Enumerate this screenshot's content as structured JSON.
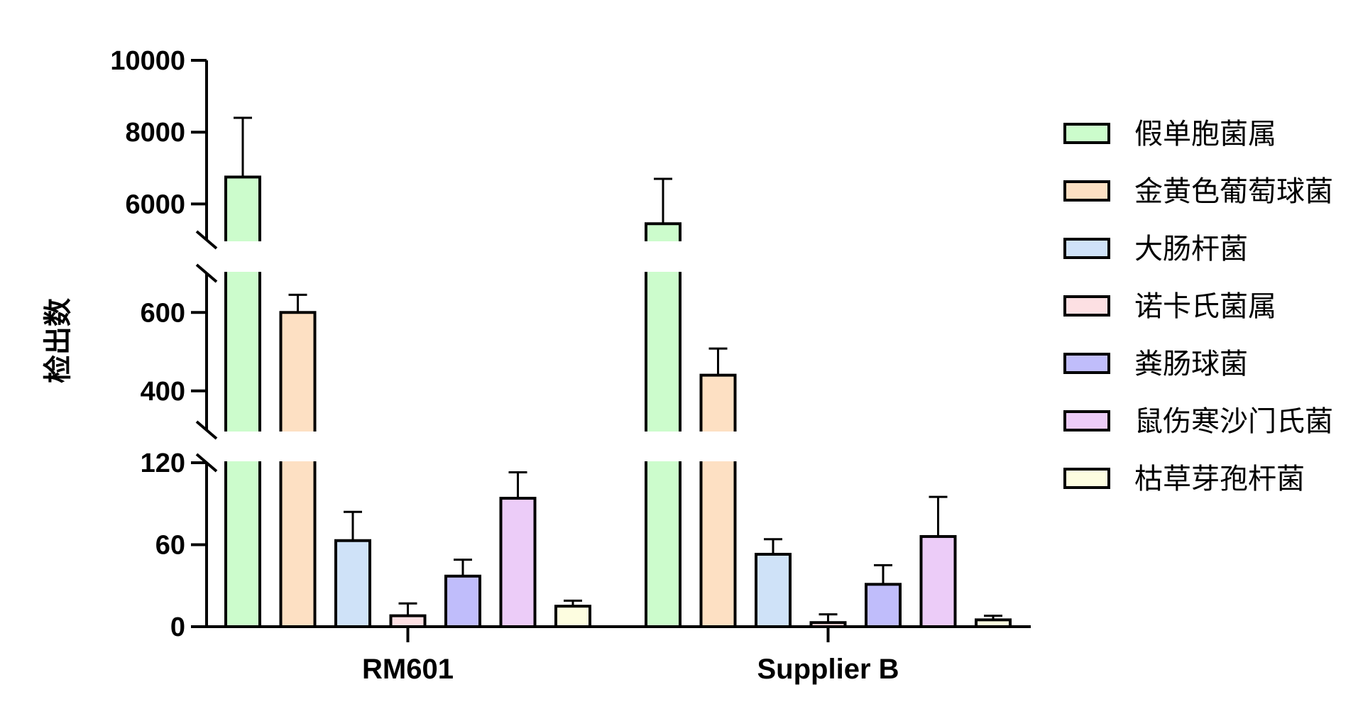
{
  "chart_data": {
    "type": "bar",
    "title": "",
    "xlabel": "",
    "ylabel": "检出数",
    "categories": [
      "RM601",
      "Supplier B"
    ],
    "series": [
      {
        "name": "假单胞菌属",
        "color": "#ccfccc",
        "values": [
          6750,
          5450
        ],
        "errors": [
          1650,
          1250
        ]
      },
      {
        "name": "金黄色葡萄球菌",
        "color": "#fde0c3",
        "values": [
          600,
          440
        ],
        "errors": [
          45,
          68
        ]
      },
      {
        "name": "大肠杆菌",
        "color": "#cfe2f8",
        "values": [
          63,
          53
        ],
        "errors": [
          21,
          11
        ]
      },
      {
        "name": "诺卡氏菌属",
        "color": "#fde0e3",
        "values": [
          8,
          3
        ],
        "errors": [
          9,
          6
        ]
      },
      {
        "name": "粪肠球菌",
        "color": "#c0bdfb",
        "values": [
          37,
          31
        ],
        "errors": [
          12,
          14
        ]
      },
      {
        "name": "鼠伤寒沙门氏菌",
        "color": "#ecccf8",
        "values": [
          94,
          66
        ],
        "errors": [
          19,
          29
        ]
      },
      {
        "name": "枯草芽孢杆菌",
        "color": "#fdfde0",
        "values": [
          15,
          5
        ],
        "errors": [
          4,
          3
        ]
      }
    ],
    "y_segments": [
      {
        "range": [
          0,
          120
        ],
        "ticks": [
          0,
          60,
          120
        ]
      },
      {
        "range": [
          300,
          700
        ],
        "ticks": [
          400,
          600
        ]
      },
      {
        "range": [
          5000,
          10000
        ],
        "ticks": [
          6000,
          8000,
          10000
        ]
      }
    ],
    "grid": false,
    "legend": "right"
  }
}
